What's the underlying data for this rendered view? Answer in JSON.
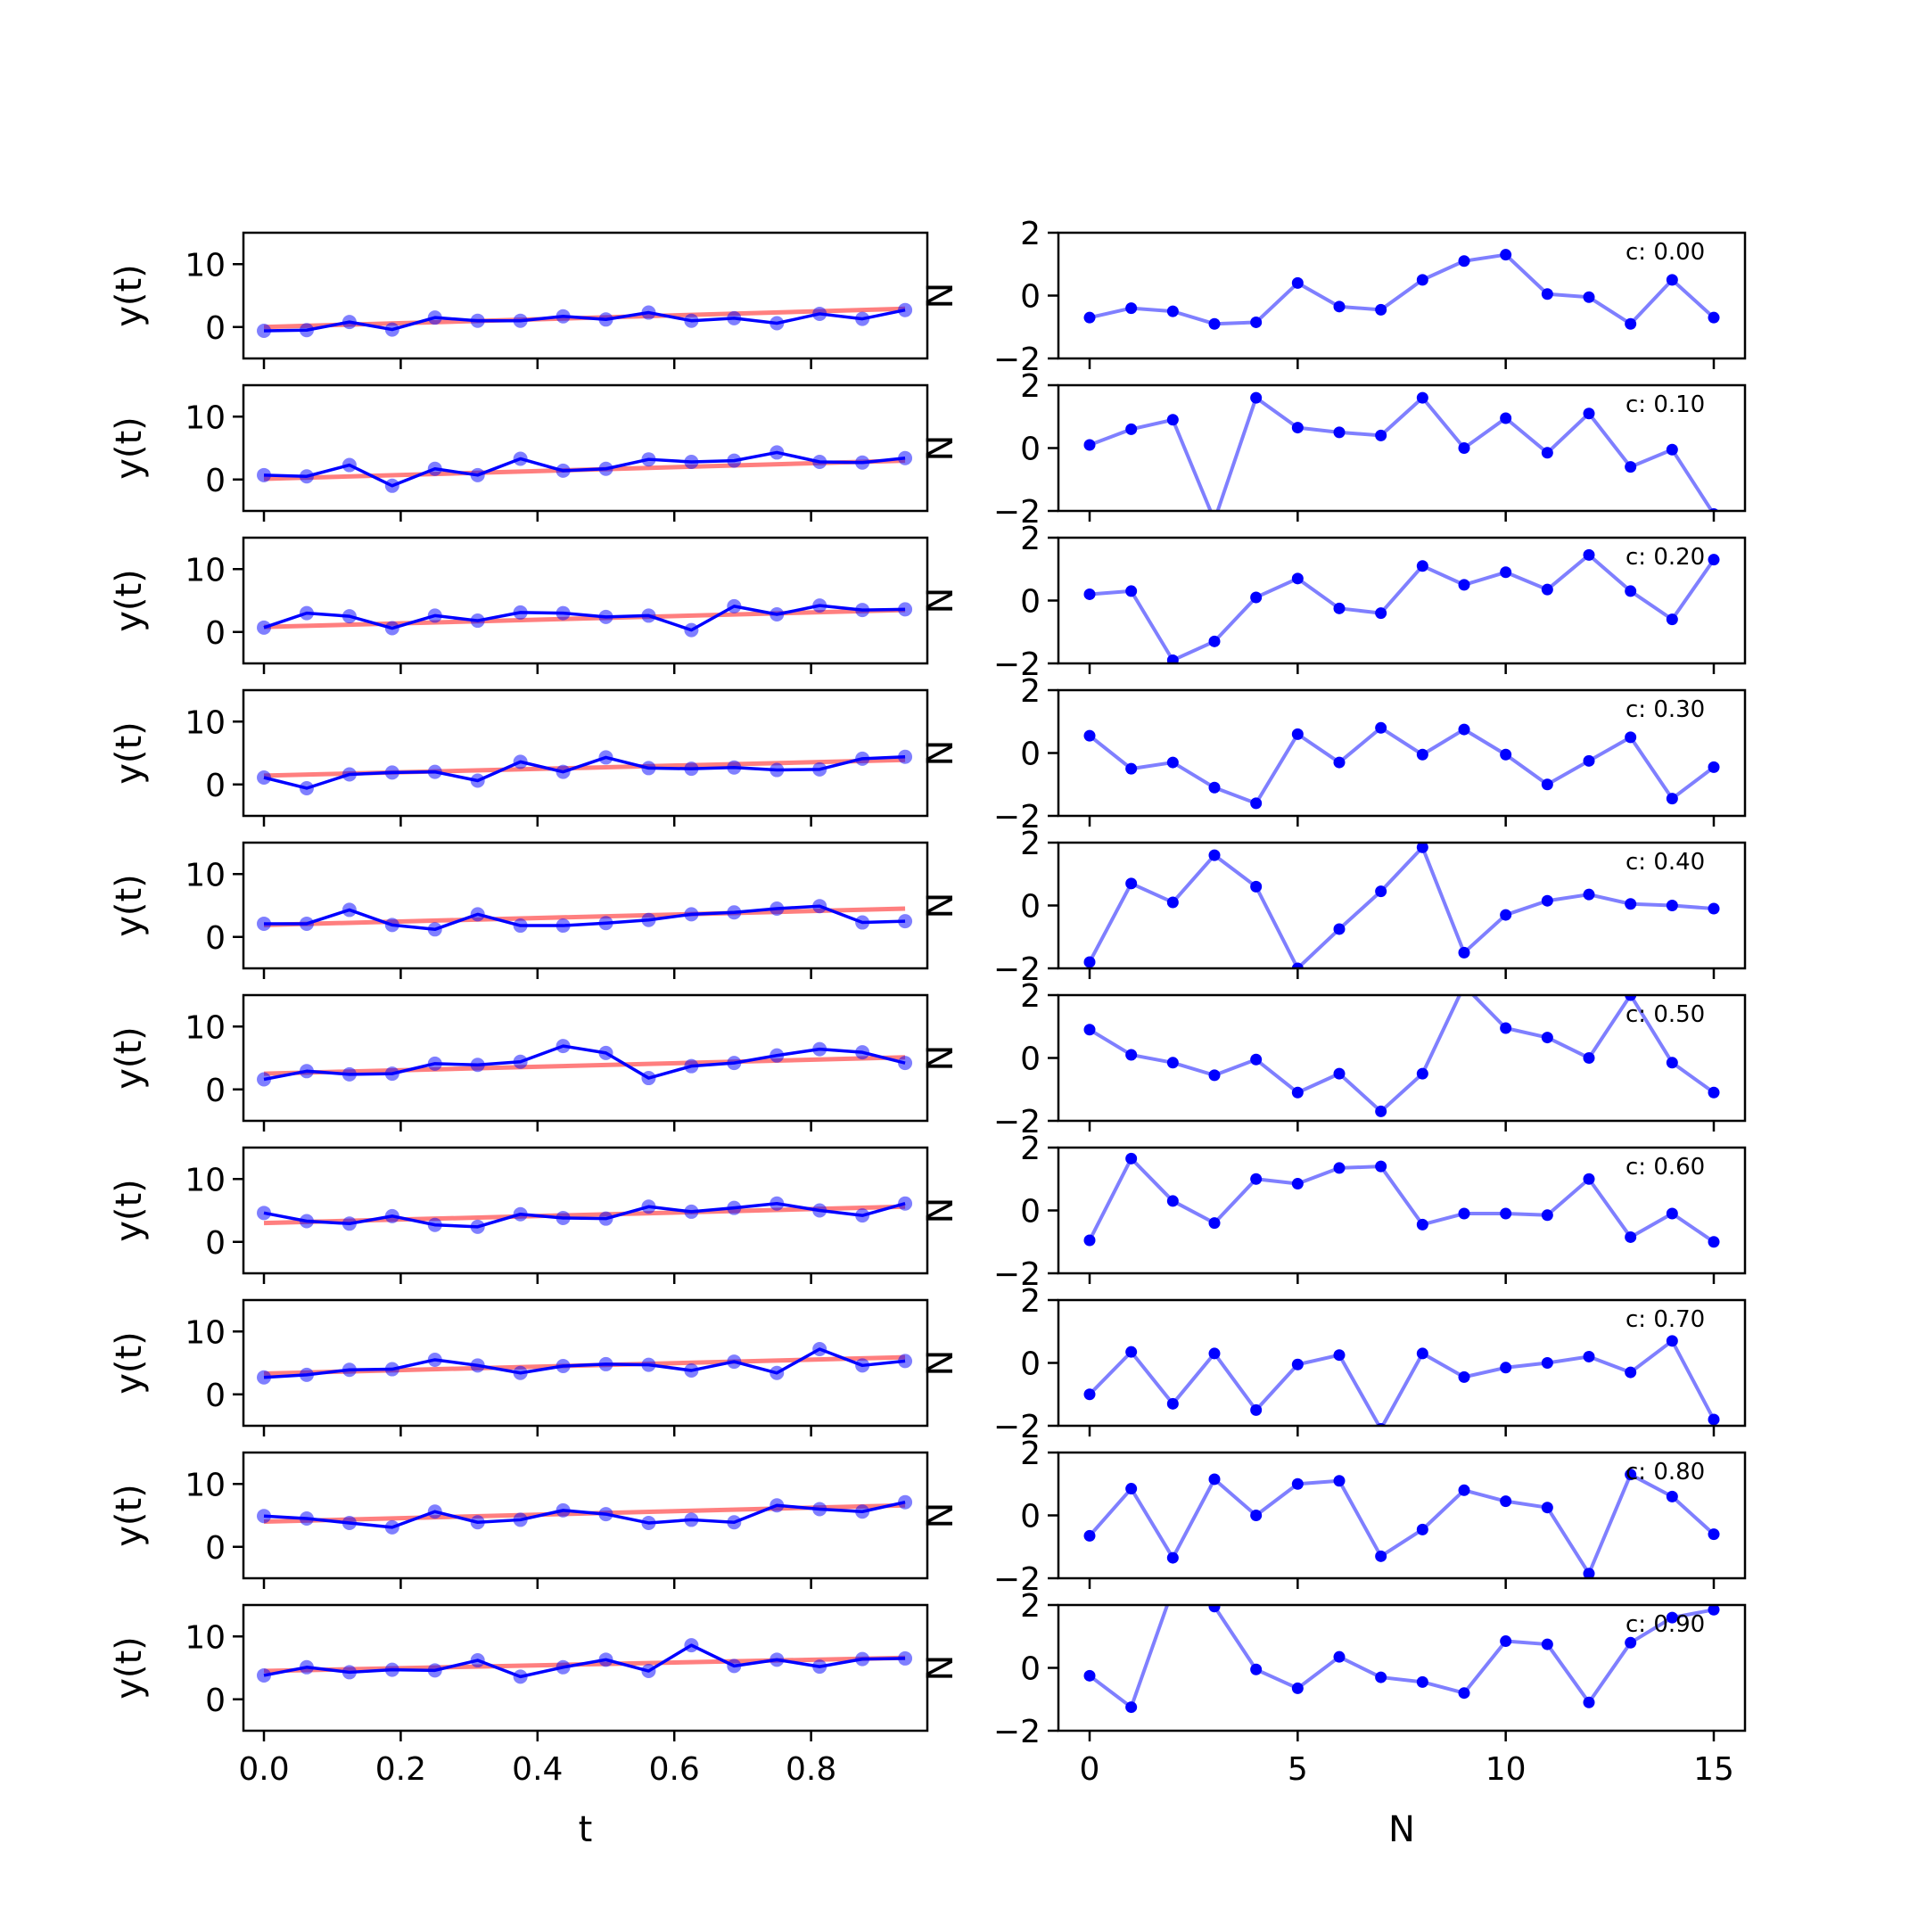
{
  "chart_data": {
    "type": "line",
    "layout": "10 rows x 2 columns of subplots",
    "left_column": {
      "xlabel": "t",
      "ylabel": "y(t)",
      "xlim": [
        -0.03,
        0.97
      ],
      "ylim": [
        -5,
        15
      ],
      "xticks": [
        "0.0",
        "0.2",
        "0.4",
        "0.6",
        "0.8"
      ],
      "yticks": [
        "0",
        "10"
      ],
      "x": [
        0.0,
        0.0625,
        0.125,
        0.1875,
        0.25,
        0.3125,
        0.375,
        0.4375,
        0.5,
        0.5625,
        0.625,
        0.6875,
        0.75,
        0.8125,
        0.875,
        0.9375
      ],
      "series_colors": {
        "observed": "#0000ff",
        "trend": "#ff0000"
      },
      "rows": [
        {
          "y": [
            -0.6,
            -0.5,
            0.8,
            -0.4,
            1.5,
            1.0,
            1.0,
            1.7,
            1.2,
            2.3,
            1.0,
            1.4,
            0.6,
            2.1,
            1.3,
            2.7
          ],
          "trend": [
            0.0,
            2.9
          ]
        },
        {
          "y": [
            0.7,
            0.5,
            2.3,
            -1.0,
            1.7,
            0.7,
            3.3,
            1.4,
            1.7,
            3.2,
            2.8,
            3.0,
            4.3,
            2.8,
            2.7,
            3.4
          ],
          "trend": [
            0.1,
            3.0
          ]
        },
        {
          "y": [
            0.7,
            3.0,
            2.5,
            0.6,
            2.6,
            1.8,
            3.1,
            3.0,
            2.4,
            2.6,
            0.3,
            4.1,
            2.8,
            4.2,
            3.5,
            3.6
          ],
          "trend": [
            0.8,
            3.5
          ]
        },
        {
          "y": [
            1.1,
            -0.6,
            1.6,
            1.9,
            2.0,
            0.6,
            3.6,
            2.0,
            4.3,
            2.6,
            2.5,
            2.7,
            2.3,
            2.4,
            4.1,
            4.4
          ],
          "trend": [
            1.4,
            3.9
          ]
        },
        {
          "y": [
            2.1,
            2.1,
            4.3,
            1.9,
            1.2,
            3.6,
            1.8,
            1.8,
            2.2,
            2.7,
            3.6,
            3.9,
            4.5,
            4.9,
            2.3,
            2.5
          ],
          "trend": [
            1.9,
            4.5
          ]
        },
        {
          "y": [
            1.6,
            2.9,
            2.4,
            2.5,
            4.1,
            3.9,
            4.4,
            6.9,
            5.8,
            1.8,
            3.7,
            4.2,
            5.4,
            6.4,
            5.9,
            4.2
          ],
          "trend": [
            2.5,
            5.1
          ]
        },
        {
          "y": [
            4.6,
            3.3,
            2.9,
            4.1,
            2.7,
            2.4,
            4.4,
            3.8,
            3.7,
            5.6,
            4.8,
            5.4,
            6.1,
            5.0,
            4.2,
            6.1
          ],
          "trend": [
            3.0,
            5.6
          ]
        },
        {
          "y": [
            2.7,
            3.1,
            3.9,
            4.0,
            5.5,
            4.6,
            3.4,
            4.5,
            4.8,
            4.7,
            3.8,
            5.2,
            3.4,
            7.2,
            4.6,
            5.3
          ],
          "trend": [
            3.3,
            5.9
          ]
        },
        {
          "y": [
            4.9,
            4.5,
            3.8,
            3.1,
            5.6,
            3.9,
            4.3,
            5.8,
            5.2,
            3.8,
            4.3,
            3.9,
            6.6,
            6.0,
            5.6,
            7.1
          ],
          "trend": [
            4.0,
            6.6
          ]
        },
        {
          "y": [
            3.8,
            5.1,
            4.3,
            4.7,
            4.6,
            6.2,
            3.6,
            5.1,
            6.3,
            4.5,
            8.6,
            5.3,
            6.3,
            5.2,
            6.4,
            6.5
          ],
          "trend": [
            4.5,
            6.6
          ]
        }
      ]
    },
    "right_column": {
      "xlabel": "N",
      "ylabel": "N",
      "xlim": [
        -0.75,
        15.75
      ],
      "ylim": [
        -2,
        2
      ],
      "xticks": [
        "0",
        "5",
        "10",
        "15"
      ],
      "yticks": [
        "−2",
        "0",
        "2"
      ],
      "x": [
        0,
        1,
        2,
        3,
        4,
        5,
        6,
        7,
        8,
        9,
        10,
        11,
        12,
        13,
        14,
        15
      ],
      "series_color": "#0000ff",
      "rows": [
        {
          "label": "c: 0.00",
          "y": [
            -0.7,
            -0.4,
            -0.5,
            -0.9,
            -0.85,
            0.4,
            -0.35,
            -0.45,
            0.5,
            1.1,
            1.3,
            0.05,
            -0.05,
            -0.9,
            0.5,
            -0.7
          ]
        },
        {
          "label": "c: 0.10",
          "y": [
            0.1,
            0.6,
            0.9,
            -2.3,
            1.6,
            0.65,
            0.5,
            0.4,
            1.6,
            0.0,
            0.95,
            -0.15,
            1.1,
            -0.6,
            -0.05,
            -2.1
          ]
        },
        {
          "label": "c: 0.20",
          "y": [
            0.2,
            0.3,
            -1.9,
            -1.3,
            0.1,
            0.7,
            -0.25,
            -0.4,
            1.1,
            0.5,
            0.9,
            0.35,
            1.45,
            0.3,
            -0.6,
            1.3
          ]
        },
        {
          "label": "c: 0.30",
          "y": [
            0.55,
            -0.5,
            -0.3,
            -1.1,
            -1.6,
            0.6,
            -0.3,
            0.8,
            -0.05,
            0.75,
            -0.05,
            -1.0,
            -0.25,
            0.5,
            -1.45,
            -0.45
          ]
        },
        {
          "label": "c: 0.40",
          "y": [
            -1.8,
            0.7,
            0.1,
            1.6,
            0.6,
            -2.0,
            -0.75,
            0.45,
            1.85,
            -1.5,
            -0.3,
            0.15,
            0.35,
            0.05,
            0.0,
            -0.1
          ]
        },
        {
          "label": "c: 0.50",
          "y": [
            0.9,
            0.1,
            -0.15,
            -0.55,
            -0.05,
            -1.1,
            -0.5,
            -1.7,
            -0.5,
            2.3,
            0.95,
            0.65,
            0.0,
            2.0,
            -0.15,
            -1.1
          ]
        },
        {
          "label": "c: 0.60",
          "y": [
            -0.95,
            1.65,
            0.3,
            -0.4,
            1.0,
            0.85,
            1.35,
            1.4,
            -0.45,
            -0.1,
            -0.1,
            -0.15,
            1.0,
            -0.85,
            -0.1,
            -1.0
          ]
        },
        {
          "label": "c: 0.70",
          "y": [
            -1.0,
            0.35,
            -1.3,
            0.3,
            -1.5,
            -0.05,
            0.25,
            -2.1,
            0.3,
            -0.45,
            -0.15,
            0.0,
            0.2,
            -0.3,
            0.7,
            -1.8
          ]
        },
        {
          "label": "c: 0.80",
          "y": [
            -0.65,
            0.85,
            -1.35,
            1.15,
            0.0,
            1.0,
            1.1,
            -1.3,
            -0.45,
            0.8,
            0.45,
            0.25,
            -1.85,
            1.3,
            0.6,
            -0.6
          ]
        },
        {
          "label": "c: 0.90",
          "y": [
            -0.25,
            -1.25,
            2.5,
            1.95,
            -0.05,
            -0.65,
            0.35,
            -0.3,
            -0.45,
            -0.8,
            0.85,
            0.75,
            -1.1,
            0.8,
            1.6,
            1.85
          ]
        }
      ]
    }
  }
}
